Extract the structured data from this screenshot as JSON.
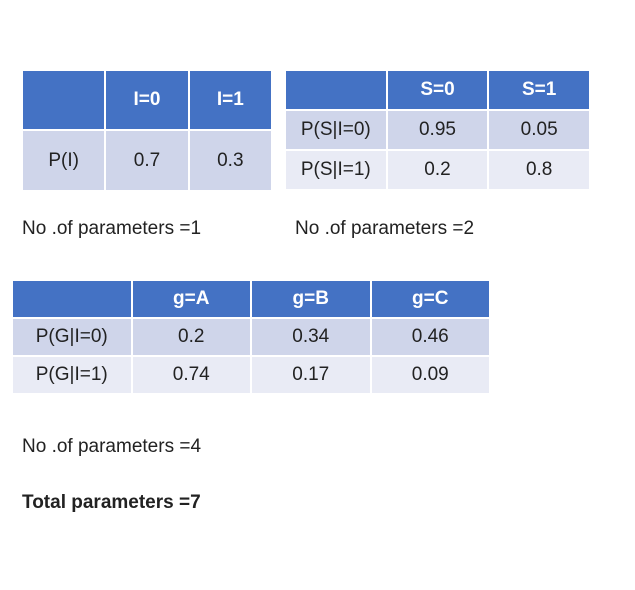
{
  "tables": [
    {
      "header": [
        "I=0",
        "I=1"
      ],
      "rows": [
        [
          "P(I)",
          0.7,
          0.3
        ]
      ]
    },
    {
      "header": [
        "S=0",
        "S=1"
      ],
      "rows": [
        [
          "P(S|I=0)",
          0.95,
          0.05
        ],
        [
          "P(S|I=1)",
          0.2,
          0.8
        ]
      ]
    },
    {
      "header": [
        "g=A",
        "g=B",
        "g=C"
      ],
      "rows": [
        [
          "P(G|I=0)",
          0.2,
          0.34,
          0.46
        ],
        [
          "P(G|I=1)",
          0.74,
          0.17,
          0.09
        ]
      ]
    }
  ],
  "notes": [
    "No .of parameters =1",
    "No .of parameters =2",
    "No .of parameters =4"
  ],
  "total": "Total parameters =7"
}
